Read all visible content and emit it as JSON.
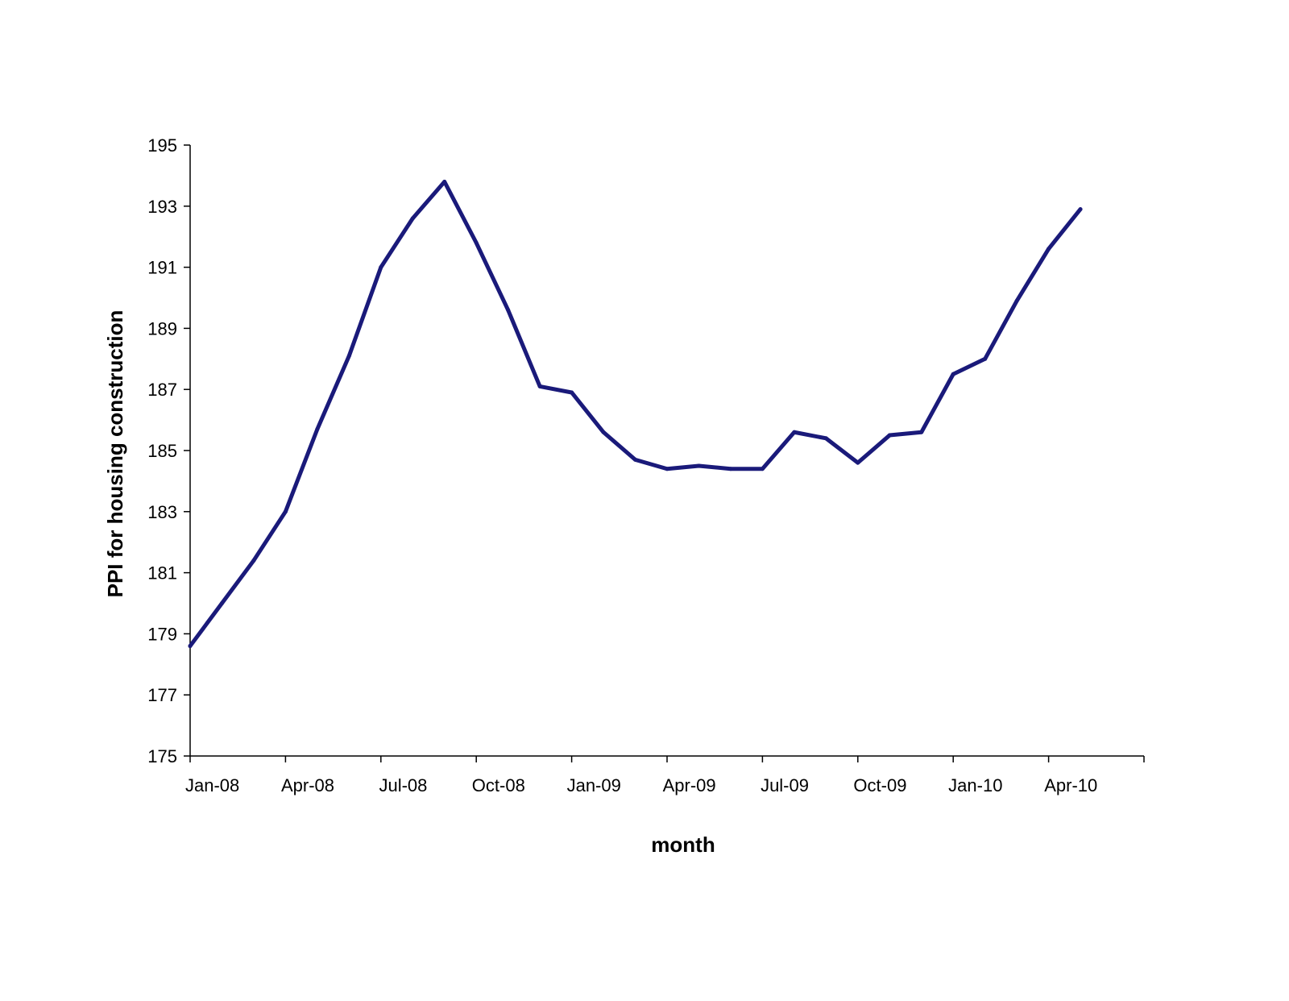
{
  "chart_data": {
    "type": "line",
    "title": "",
    "xlabel": "month",
    "ylabel": "PPI for housing construction",
    "ylim": [
      175,
      195
    ],
    "yticks": [
      175,
      177,
      179,
      181,
      183,
      185,
      187,
      189,
      191,
      193,
      195
    ],
    "xlim": [
      "2008-01",
      "2010-07"
    ],
    "xtick_labels": [
      "Jan-08",
      "Apr-08",
      "Jul-08",
      "Oct-08",
      "Jan-09",
      "Apr-09",
      "Jul-09",
      "Oct-09",
      "Jan-10",
      "Apr-10"
    ],
    "grid": false,
    "legend": "none",
    "line_color": "#1a1a7a",
    "categories": [
      "Jan-08",
      "Feb-08",
      "Mar-08",
      "Apr-08",
      "May-08",
      "Jun-08",
      "Jul-08",
      "Aug-08",
      "Sep-08",
      "Oct-08",
      "Nov-08",
      "Dec-08",
      "Jan-09",
      "Feb-09",
      "Mar-09",
      "Apr-09",
      "May-09",
      "Jun-09",
      "Jul-09",
      "Aug-09",
      "Sep-09",
      "Oct-09",
      "Nov-09",
      "Dec-09",
      "Jan-10",
      "Feb-10",
      "Mar-10",
      "Apr-10",
      "May-10"
    ],
    "series": [
      {
        "values": [
          178.6,
          180.0,
          181.4,
          183.0,
          185.7,
          188.1,
          191.0,
          192.6,
          193.8,
          191.8,
          189.6,
          187.1,
          186.9,
          185.6,
          184.7,
          184.4,
          184.5,
          184.4,
          184.4,
          185.6,
          185.4,
          184.6,
          185.5,
          185.6,
          187.5,
          188.0,
          189.9,
          191.6,
          192.9
        ]
      }
    ]
  }
}
